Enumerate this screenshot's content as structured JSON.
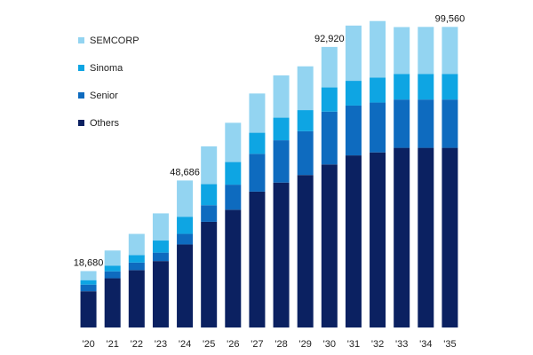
{
  "chart_data": {
    "type": "bar",
    "stacked": true,
    "categories": [
      "'20",
      "'21",
      "'22",
      "'23",
      "'24",
      "'25",
      "'26",
      "'27",
      "'28",
      "'29",
      "'30",
      "'31",
      "'32",
      "'33",
      "'34",
      "'35"
    ],
    "series": [
      {
        "name": "Others",
        "color": "#0b2161",
        "values": [
          12000,
          16300,
          19000,
          22000,
          27500,
          35000,
          39000,
          45000,
          48000,
          50500,
          54000,
          57000,
          58000,
          59500,
          59500,
          59500
        ]
      },
      {
        "name": "Senior",
        "color": "#0e6bbf",
        "values": [
          2200,
          2300,
          2500,
          2800,
          3500,
          5500,
          8300,
          12500,
          14000,
          14500,
          17500,
          16500,
          16500,
          16000,
          16000,
          16000
        ]
      },
      {
        "name": "Sinoma",
        "color": "#0ea5e3",
        "values": [
          1480,
          1900,
          2500,
          4000,
          5686,
          7000,
          7500,
          7000,
          7500,
          7000,
          8000,
          8200,
          8300,
          8500,
          8500,
          8500
        ]
      },
      {
        "name": "SEMCORP",
        "color": "#93d4f1",
        "values": [
          3000,
          5000,
          7000,
          9000,
          12000,
          12500,
          13000,
          13000,
          14000,
          14500,
          13420,
          18300,
          18700,
          15500,
          15560,
          15560
        ]
      }
    ],
    "totals_labels": [
      {
        "index": 0,
        "text": "18,680"
      },
      {
        "index": 4,
        "text": "48,686"
      },
      {
        "index": 10,
        "text": "92,920"
      },
      {
        "index": 15,
        "text": "99,560"
      }
    ],
    "legend": {
      "order": [
        "SEMCORP",
        "Sinoma",
        "Senior",
        "Others"
      ],
      "position": "top-left"
    },
    "ylim": [
      0,
      102000
    ],
    "grid": false,
    "title": "",
    "xlabel": "",
    "ylabel": ""
  }
}
